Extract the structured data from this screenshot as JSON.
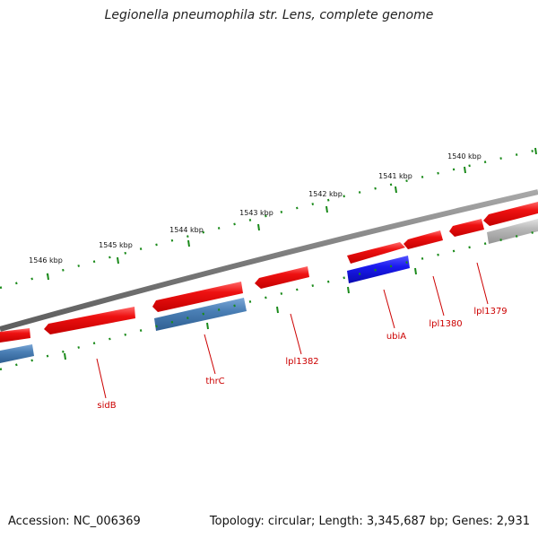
{
  "title": "Legionella pneumophila str. Lens, complete genome",
  "accession": "Accession: NC_006369",
  "summary": "Topology: circular; Length: 3,345,687 bp; Genes: 2,931",
  "colors": {
    "gene_red": "#ee1111",
    "gene_steel": "#4a7fb5",
    "gene_blue": "#1a1aee",
    "gene_grey": "#b8b8b8",
    "backbone": "#808080",
    "tick": "#1a8a1a",
    "label_red": "#cc0000"
  },
  "kbp_ticks": [
    "1546 kbp",
    "1545 kbp",
    "1544 kbp",
    "1543 kbp",
    "1542 kbp",
    "1541 kbp",
    "1540 kbp"
  ],
  "gene_labels": [
    "sidB",
    "thrC",
    "lpl1382",
    "ubiA",
    "lpl1380",
    "lpl1379"
  ]
}
